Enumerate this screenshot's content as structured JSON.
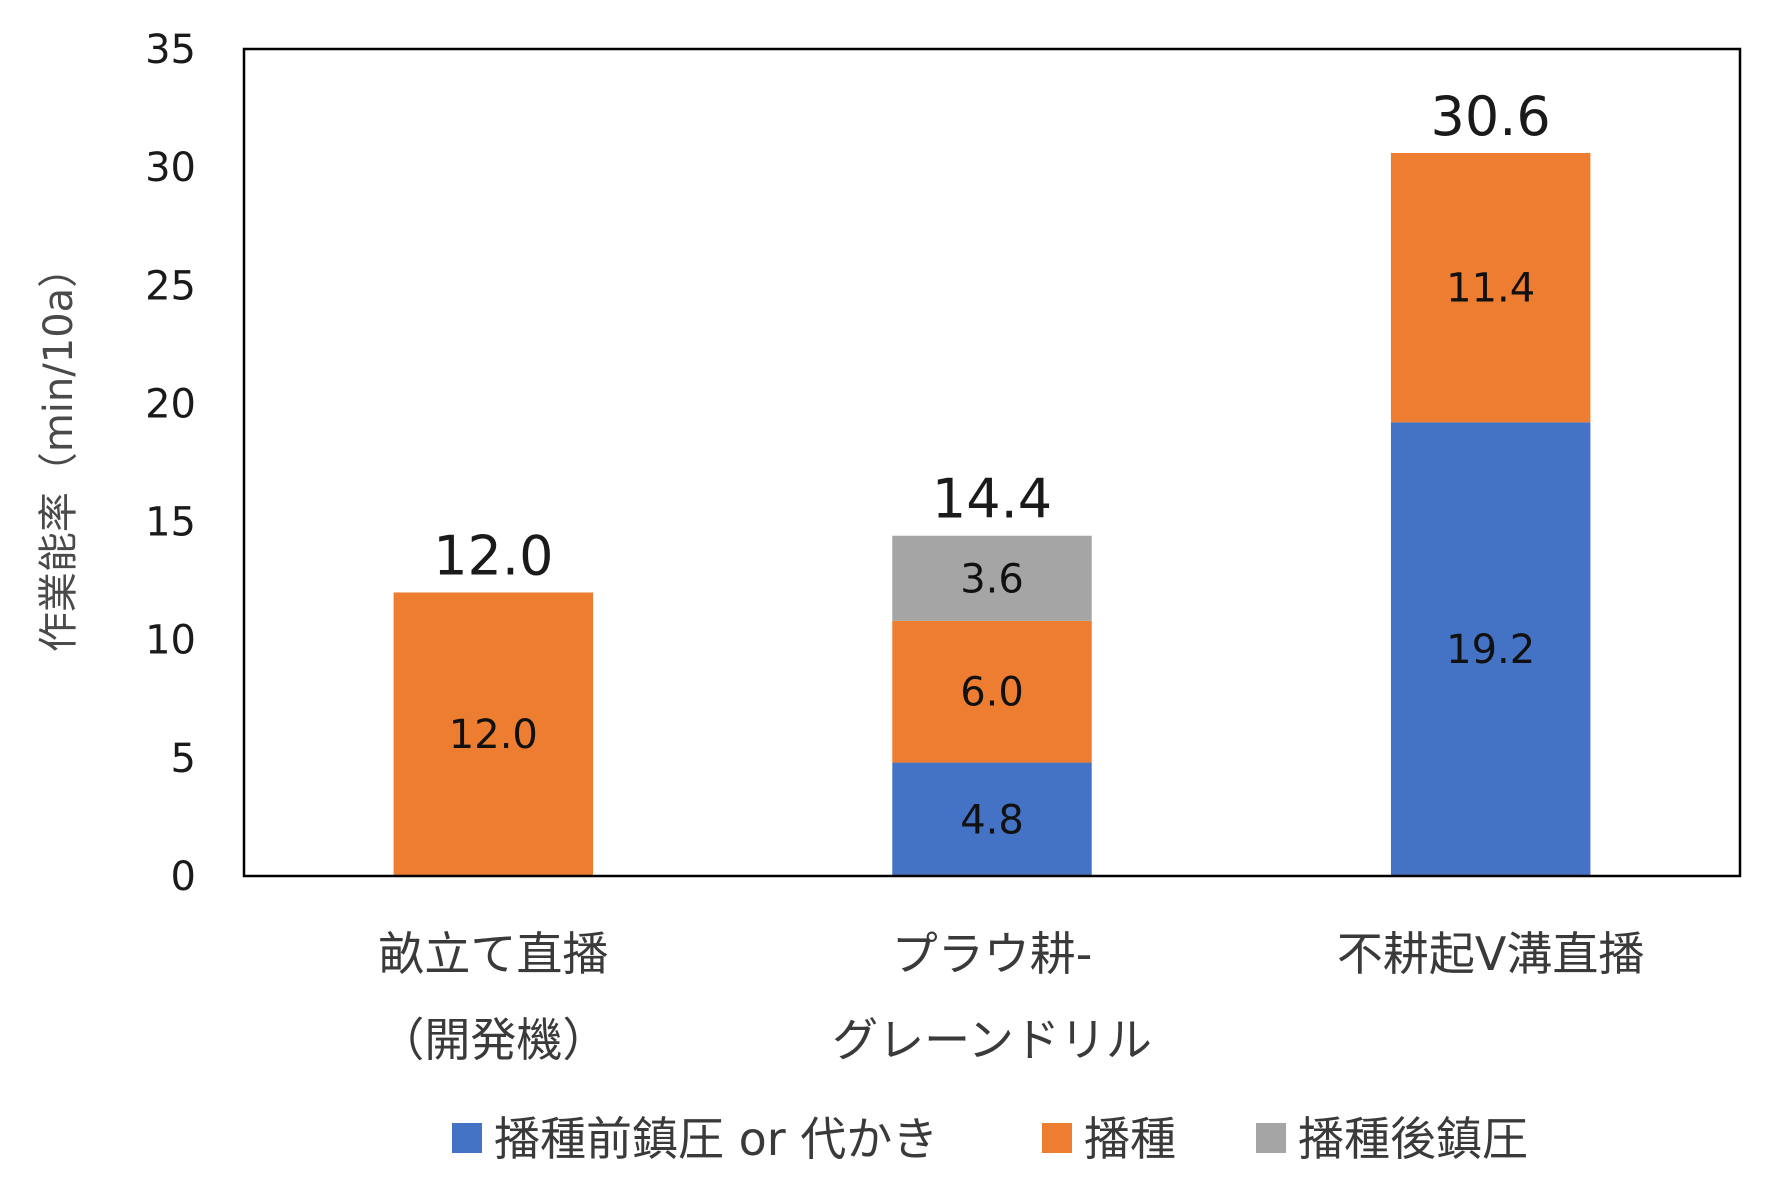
{
  "chart_data": {
    "type": "bar",
    "stacked": true,
    "categories": [
      [
        "畝立て直播",
        "（開発機）"
      ],
      [
        "プラウ耕-",
        "グレーンドリル"
      ],
      [
        "不耕起V溝直播"
      ]
    ],
    "series": [
      {
        "name": "播種前鎮圧 or 代かき",
        "color": "#4472C4",
        "values": [
          0,
          4.8,
          19.2
        ],
        "labels": [
          "",
          "4.8",
          "19.2"
        ]
      },
      {
        "name": "播種",
        "color": "#ED7D31",
        "values": [
          12.0,
          6.0,
          11.4
        ],
        "labels": [
          "12.0",
          "6.0",
          "11.4"
        ]
      },
      {
        "name": "播種後鎮圧",
        "color": "#A5A5A5",
        "values": [
          0,
          3.6,
          0
        ],
        "labels": [
          "",
          "3.6",
          ""
        ]
      }
    ],
    "totals": [
      "12.0",
      "14.4",
      "30.6"
    ],
    "ylabel": "作業能率（min/10a）",
    "ylim": [
      0,
      35
    ],
    "yticks": [
      "0",
      "5",
      "10",
      "15",
      "20",
      "25",
      "30",
      "35"
    ],
    "grid": false,
    "legend": "bottom"
  }
}
